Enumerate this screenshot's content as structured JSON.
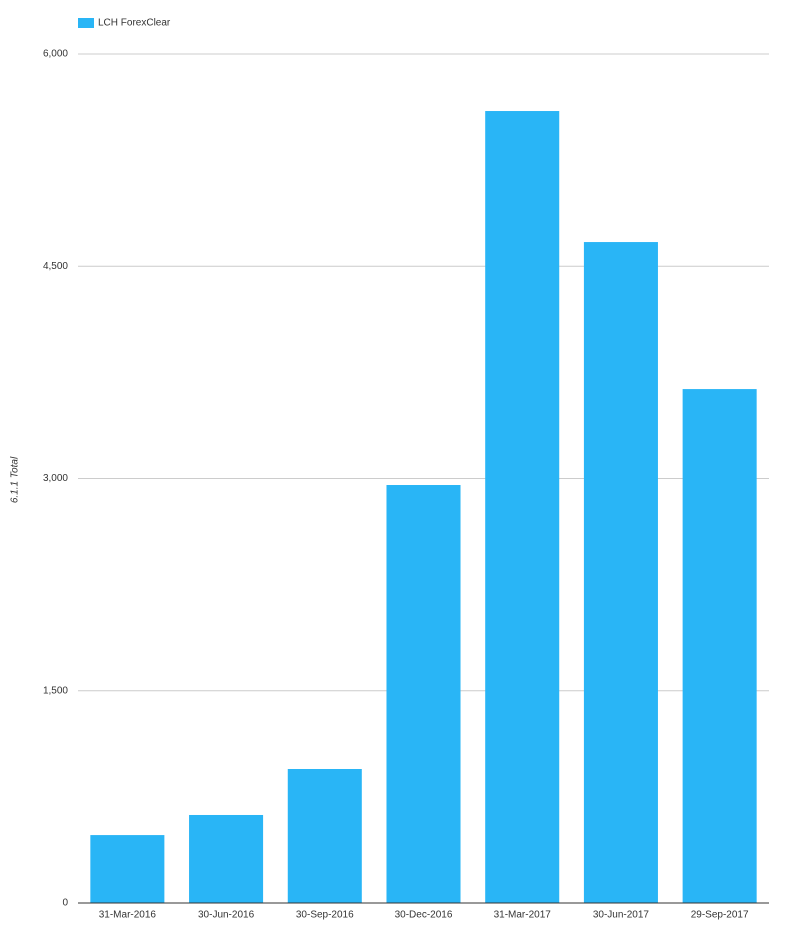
{
  "chart_data": {
    "type": "bar",
    "y_label": "6.1.1 Total",
    "categories": [
      "31-Mar-2016",
      "30-Jun-2016",
      "30-Sep-2016",
      "30-Dec-2016",
      "31-Mar-2017",
      "30-Jun-2017",
      "29-Sep-2017"
    ],
    "series": [
      {
        "name": "LCH ForexClear",
        "color": "#29b5f6",
        "values": [
          480,
          622,
          947,
          2954,
          5597,
          4671,
          3632
        ]
      }
    ],
    "ylim": [
      0,
      6000
    ],
    "yticks": [
      0,
      {
        "value": 1500,
        "label": "1,500"
      },
      {
        "value": 3000,
        "label": "3,000"
      },
      {
        "value": 4500,
        "label": "4,500"
      },
      {
        "value": 6000,
        "label": "6,000"
      }
    ],
    "grid": true
  }
}
